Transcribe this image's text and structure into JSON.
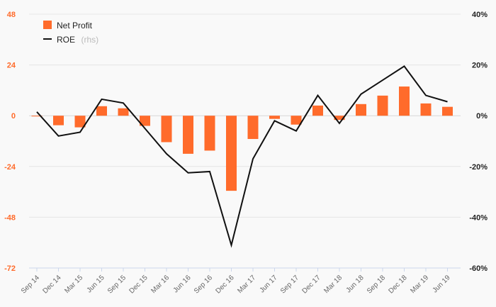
{
  "chart_data": {
    "type": "bar",
    "categories": [
      "Sep 14",
      "Dec 14",
      "Mar 15",
      "Jun 15",
      "Sep 15",
      "Dec 15",
      "Mar 16",
      "Jun 16",
      "Sep 16",
      "Dec 16",
      "Mar 17",
      "Jun 17",
      "Sep 17",
      "Dec 17",
      "Mar 18",
      "Jun 18",
      "Sep 18",
      "Dec 18",
      "Mar 19",
      "Jun 19"
    ],
    "series": [
      {
        "name": "Net Profit",
        "type": "bar",
        "axis": "left",
        "color": "#ff6b2b",
        "values": [
          -0.3,
          -4.5,
          -5.5,
          4.5,
          3.5,
          -4.8,
          -12.5,
          -18,
          -16.5,
          -35.5,
          -11,
          -1.5,
          -4.2,
          4.8,
          -2,
          5.5,
          9.5,
          13.8,
          5.8,
          4.2
        ]
      },
      {
        "name": "ROE",
        "name_suffix": "(rhs)",
        "type": "line",
        "axis": "right",
        "color": "#111111",
        "values": [
          1.5,
          -8,
          -6.5,
          6.5,
          5,
          -5,
          -15,
          -22.5,
          -22,
          -51,
          -17,
          -2,
          -6,
          8,
          -3,
          8.5,
          14,
          19.5,
          8,
          5.5
        ]
      }
    ],
    "left_axis": {
      "ylim": [
        -72,
        48
      ],
      "ticks": [
        48,
        24,
        0,
        -24,
        -48,
        -72
      ],
      "color": "#ff6b2b"
    },
    "right_axis": {
      "ylim": [
        -60,
        40
      ],
      "ticks": [
        "40%",
        "20%",
        "0%",
        "-20%",
        "-40%",
        "-60%"
      ],
      "tick_values": [
        40,
        20,
        0,
        -20,
        -40,
        -60
      ],
      "color": "#222222"
    },
    "legend": {
      "placement": "top-left"
    },
    "grid": true
  }
}
